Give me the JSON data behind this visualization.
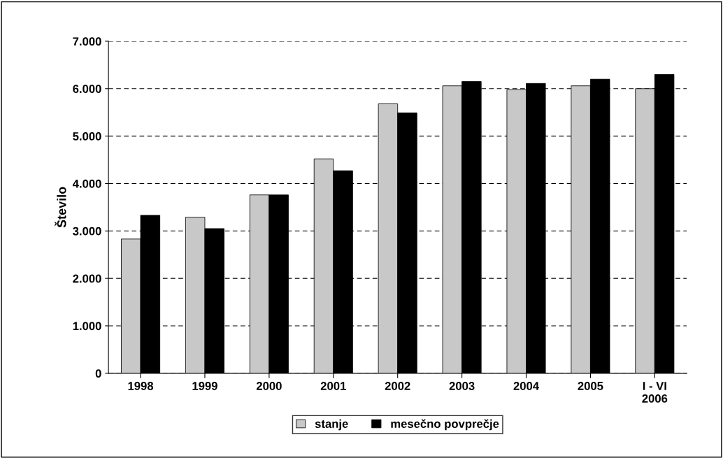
{
  "chart_data": {
    "type": "bar",
    "ylabel": "Število",
    "categories": [
      "1998",
      "1999",
      "2000",
      "2001",
      "2002",
      "2003",
      "2004",
      "2005",
      "I - VI\n2006"
    ],
    "series": [
      {
        "name": "stanje",
        "color": "#c8c8c8",
        "values": [
          2830,
          3290,
          3760,
          4520,
          5680,
          6060,
          5980,
          6060,
          6000
        ]
      },
      {
        "name": "mesečno povprečje",
        "color": "#000000",
        "values": [
          3330,
          3050,
          3760,
          4270,
          5490,
          6150,
          6110,
          6200,
          6300
        ]
      }
    ],
    "ylim": [
      0,
      7000
    ],
    "yticks": [
      {
        "value": 0,
        "label": "0"
      },
      {
        "value": 1000,
        "label": "1.000"
      },
      {
        "value": 2000,
        "label": "2.000"
      },
      {
        "value": 3000,
        "label": "3.000"
      },
      {
        "value": 4000,
        "label": "4.000"
      },
      {
        "value": 5000,
        "label": "5.000"
      },
      {
        "value": 6000,
        "label": "6.000"
      },
      {
        "value": 7000,
        "label": "7.000"
      }
    ],
    "grid": "y",
    "legend": "bottom"
  }
}
